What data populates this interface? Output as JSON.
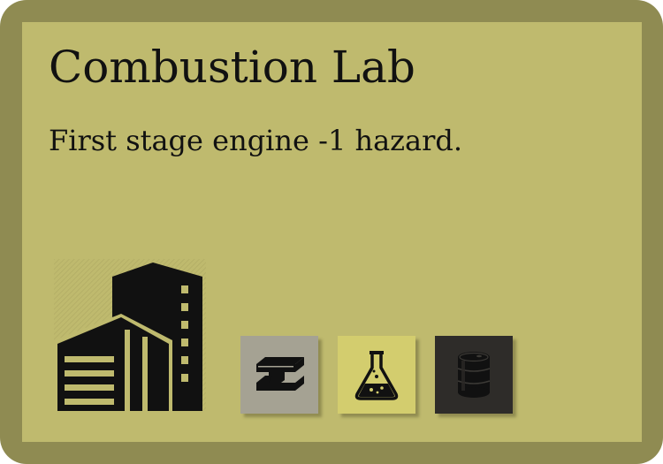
{
  "card": {
    "title": "Combustion Lab",
    "text": "First stage engine -1 hazard.",
    "card_type_icon": "building-icon",
    "colors": {
      "frame": "#8f8b52",
      "face": "#bfba6e",
      "ink": "#111111"
    }
  },
  "resources": [
    {
      "icon": "steel-beam-icon",
      "color": "#a5a293"
    },
    {
      "icon": "flask-icon",
      "color": "#d3cd6e"
    },
    {
      "icon": "oil-barrel-icon",
      "color": "#2e2c29"
    }
  ]
}
